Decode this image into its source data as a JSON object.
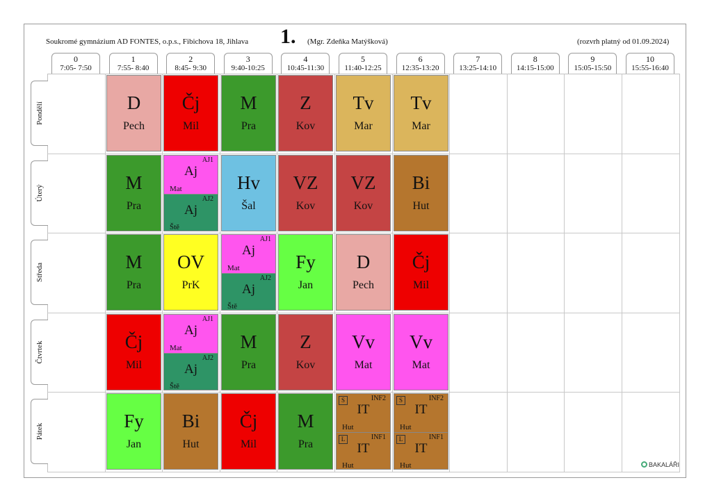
{
  "header": {
    "school": "Soukromé gymnázium AD FONTES, o.p.s., Fibichova 18, Jihlava",
    "class": "1.",
    "teacher": "(Mgr. Zdeňka Matýšková)",
    "valid_from": "(rozvrh platný od 01.09.2024)"
  },
  "periods": [
    {
      "num": "0",
      "time": "7:05- 7:50"
    },
    {
      "num": "1",
      "time": "7:55- 8:40"
    },
    {
      "num": "2",
      "time": "8:45- 9:30"
    },
    {
      "num": "3",
      "time": "9:40-10:25"
    },
    {
      "num": "4",
      "time": "10:45-11:30"
    },
    {
      "num": "5",
      "time": "11:40-12:25"
    },
    {
      "num": "6",
      "time": "12:35-13:20"
    },
    {
      "num": "7",
      "time": "13:25-14:10"
    },
    {
      "num": "8",
      "time": "14:15-15:00"
    },
    {
      "num": "9",
      "time": "15:05-15:50"
    },
    {
      "num": "10",
      "time": "15:55-16:40"
    }
  ],
  "days": [
    "Pondělí",
    "Úterý",
    "Středa",
    "Čtvrtek",
    "Pátek"
  ],
  "colors": {
    "D": "#e8a8a4",
    "Cj": "#ee0000",
    "M": "#3c9a2c",
    "Z": "#c44444",
    "Tv": "#dbb55c",
    "Aj": "#ff55ee",
    "Aj2": "#2e9466",
    "Hv": "#6ec1e2",
    "VZ": "#c44444",
    "Bi": "#b5762e",
    "OV": "#ffff22",
    "Fy": "#66ff44",
    "Vv": "#ff55ee",
    "IT": "#b5762e"
  },
  "schedule": [
    [
      {
        "p": 1,
        "subj": "D",
        "tch": "Pech",
        "c": "D"
      },
      {
        "p": 2,
        "subj": "Čj",
        "tch": "Mil",
        "c": "Cj"
      },
      {
        "p": 3,
        "subj": "M",
        "tch": "Pra",
        "c": "M"
      },
      {
        "p": 4,
        "subj": "Z",
        "tch": "Kov",
        "c": "Z"
      },
      {
        "p": 5,
        "subj": "Tv",
        "tch": "Mar",
        "c": "Tv"
      },
      {
        "p": 6,
        "subj": "Tv",
        "tch": "Mar",
        "c": "Tv"
      }
    ],
    [
      {
        "p": 1,
        "subj": "M",
        "tch": "Pra",
        "c": "M"
      },
      {
        "p": 2,
        "split": [
          {
            "grp": "AJ1",
            "subj": "Aj",
            "tch": "Mat",
            "c": "Aj"
          },
          {
            "grp": "AJ2",
            "subj": "Aj",
            "tch": "Ště",
            "c": "Aj2"
          }
        ]
      },
      {
        "p": 3,
        "subj": "Hv",
        "tch": "Šal",
        "c": "Hv"
      },
      {
        "p": 4,
        "subj": "VZ",
        "tch": "Kov",
        "c": "VZ"
      },
      {
        "p": 5,
        "subj": "VZ",
        "tch": "Kov",
        "c": "VZ"
      },
      {
        "p": 6,
        "subj": "Bi",
        "tch": "Hut",
        "c": "Bi"
      }
    ],
    [
      {
        "p": 1,
        "subj": "M",
        "tch": "Pra",
        "c": "M"
      },
      {
        "p": 2,
        "subj": "OV",
        "tch": "PrK",
        "c": "OV"
      },
      {
        "p": 3,
        "split": [
          {
            "grp": "AJ1",
            "subj": "Aj",
            "tch": "Mat",
            "c": "Aj"
          },
          {
            "grp": "AJ2",
            "subj": "Aj",
            "tch": "Ště",
            "c": "Aj2"
          }
        ]
      },
      {
        "p": 4,
        "subj": "Fy",
        "tch": "Jan",
        "c": "Fy"
      },
      {
        "p": 5,
        "subj": "D",
        "tch": "Pech",
        "c": "D"
      },
      {
        "p": 6,
        "subj": "Čj",
        "tch": "Mil",
        "c": "Cj"
      }
    ],
    [
      {
        "p": 1,
        "subj": "Čj",
        "tch": "Mil",
        "c": "Cj"
      },
      {
        "p": 2,
        "split": [
          {
            "grp": "AJ1",
            "subj": "Aj",
            "tch": "Mat",
            "c": "Aj"
          },
          {
            "grp": "AJ2",
            "subj": "Aj",
            "tch": "Ště",
            "c": "Aj2"
          }
        ]
      },
      {
        "p": 3,
        "subj": "M",
        "tch": "Pra",
        "c": "M"
      },
      {
        "p": 4,
        "subj": "Z",
        "tch": "Kov",
        "c": "Z"
      },
      {
        "p": 5,
        "subj": "Vv",
        "tch": "Mat",
        "c": "Vv"
      },
      {
        "p": 6,
        "subj": "Vv",
        "tch": "Mat",
        "c": "Vv"
      }
    ],
    [
      {
        "p": 1,
        "subj": "Fy",
        "tch": "Jan",
        "c": "Fy"
      },
      {
        "p": 2,
        "subj": "Bi",
        "tch": "Hut",
        "c": "Bi"
      },
      {
        "p": 3,
        "subj": "Čj",
        "tch": "Mil",
        "c": "Cj"
      },
      {
        "p": 4,
        "subj": "M",
        "tch": "Pra",
        "c": "M"
      },
      {
        "p": 5,
        "split": [
          {
            "room": "S",
            "grp": "INF2",
            "subj": "IT",
            "tch": "Hut",
            "c": "IT"
          },
          {
            "room": "L",
            "grp": "INF1",
            "subj": "IT",
            "tch": "Hut",
            "c": "IT"
          }
        ]
      },
      {
        "p": 6,
        "split": [
          {
            "room": "S",
            "grp": "INF2",
            "subj": "IT",
            "tch": "Hut",
            "c": "IT"
          },
          {
            "room": "L",
            "grp": "INF1",
            "subj": "IT",
            "tch": "Hut",
            "c": "IT"
          }
        ]
      }
    ]
  ],
  "footer": {
    "logo_text": "BAKALÁŘI"
  }
}
